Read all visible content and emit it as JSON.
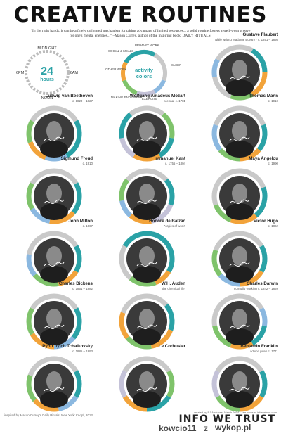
{
  "header": {
    "title": "CREATIVE ROUTINES",
    "quote": "“In the right hands, it can be a finely calibrated mechanism for taking advantage of limited resources... a solid routine fosters a well-worn groove for one's mental energies...” –Mason Currey, author of the inspiring book, DAILY RITUALS."
  },
  "legend": {
    "clock": {
      "midnight": "MIDNIGHT",
      "noon": "NOON",
      "am": "6AM",
      "pm": "6PM",
      "number": "24",
      "unit": "hours"
    },
    "colors": {
      "center": [
        "activity",
        "colors"
      ],
      "labels": [
        "SOCIAL & MEALS",
        "PRIMARY WORK",
        "SLEEP",
        "OTHER WORK",
        "MAKING ENDS MEET",
        "EXERCISE"
      ],
      "swatches": {
        "social": "#f2a33a",
        "primary": "#2aa2a6",
        "sleep": "#c9c9c9",
        "other": "#7fc36b",
        "ends": "#c4c2d8",
        "exercise": "#8bb8e0"
      }
    }
  },
  "people": [
    {
      "name": "Gustave Flaubert",
      "sub": "while writing Madame Bovary",
      "year": "c. 1851 – 1856"
    },
    {
      "name": "Ludwig van Beethoven",
      "sub": "",
      "year": "c. 1820 – 1827"
    },
    {
      "name": "Wolfgang Amadeus Mozart",
      "sub": "",
      "year": "Vienna, c. 1781"
    },
    {
      "name": "Thomas Mann",
      "sub": "",
      "year": "c. 1910"
    },
    {
      "name": "Sigmund Freud",
      "sub": "",
      "year": "c. 1910"
    },
    {
      "name": "Immanuel Kant",
      "sub": "",
      "year": "c. 1755 – 1804"
    },
    {
      "name": "Maya Angelou",
      "sub": "",
      "year": "c. 1990"
    },
    {
      "name": "John Milton",
      "sub": "",
      "year": "c. 1667"
    },
    {
      "name": "Honoré de Balzac",
      "sub": "“orgies of work”",
      "year": ""
    },
    {
      "name": "Victor Hugo",
      "sub": "",
      "year": "c. 1862"
    },
    {
      "name": "Charles Dickens",
      "sub": "",
      "year": "c. 1851 – 1882"
    },
    {
      "name": "W.H. Auden",
      "sub": "“the chemical life”",
      "year": ""
    },
    {
      "name": "Charles Darwin",
      "sub": "",
      "year": "normally working c. 1842 – 1859"
    },
    {
      "name": "Pyotr Ilyich Tchaikovsky",
      "sub": "",
      "year": "c. 1885 – 1893"
    },
    {
      "name": "Le Corbusier",
      "sub": "",
      "year": ""
    },
    {
      "name": "Benjamin Franklin",
      "sub": "",
      "year": "advice given c. 1771"
    }
  ],
  "footer": {
    "inspired": "inspired by Mason Currey's Daily Rituals. New York: Knopf, 2013.",
    "design": "created by RJ Andrews, March 2014 · see more at infowetrust.com",
    "brand": "INFO WE TRUST"
  },
  "watermark": {
    "user": "kowcio11",
    "separator": "z",
    "site": "wykop.pl"
  }
}
